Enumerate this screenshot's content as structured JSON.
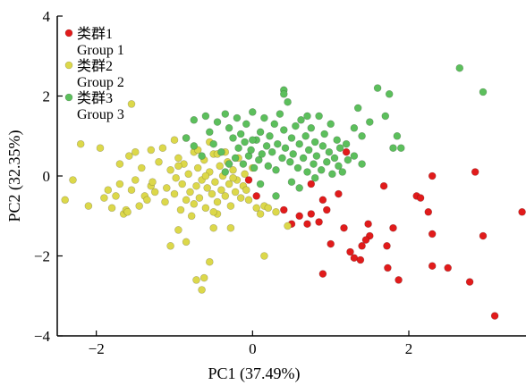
{
  "chart_data": {
    "type": "scatter",
    "xlabel": "PC1 (37.49%)",
    "ylabel": "PC2 (32.35%)",
    "xlim": [
      -2.5,
      3.5
    ],
    "ylim": [
      -4,
      4
    ],
    "xticks": [
      -2,
      0,
      2
    ],
    "yticks": [
      -4,
      -2,
      0,
      2,
      4
    ],
    "grid": false,
    "legend_position": "top-left",
    "series": [
      {
        "name": "类群1",
        "name_en": "Group 1",
        "color": "#e11b1b",
        "points": [
          [
            -0.05,
            -0.1
          ],
          [
            0.05,
            -0.5
          ],
          [
            0.4,
            -0.85
          ],
          [
            0.6,
            -1.0
          ],
          [
            0.7,
            -1.2
          ],
          [
            0.85,
            -1.15
          ],
          [
            0.75,
            -0.95
          ],
          [
            0.95,
            -0.85
          ],
          [
            1.1,
            -0.45
          ],
          [
            0.9,
            -0.6
          ],
          [
            1.2,
            0.6
          ],
          [
            0.75,
            -0.2
          ],
          [
            1.0,
            -1.7
          ],
          [
            0.9,
            -2.45
          ],
          [
            1.25,
            -1.9
          ],
          [
            1.4,
            -1.75
          ],
          [
            1.3,
            -2.05
          ],
          [
            1.38,
            -2.1
          ],
          [
            1.48,
            -1.2
          ],
          [
            1.5,
            -1.5
          ],
          [
            1.45,
            -1.6
          ],
          [
            1.72,
            -1.75
          ],
          [
            1.73,
            -2.3
          ],
          [
            1.68,
            -0.25
          ],
          [
            2.1,
            -0.5
          ],
          [
            2.15,
            -0.55
          ],
          [
            2.3,
            -1.45
          ],
          [
            2.3,
            -2.25
          ],
          [
            2.25,
            -0.9
          ],
          [
            2.5,
            -2.3
          ],
          [
            2.3,
            0.0
          ],
          [
            2.85,
            0.1
          ],
          [
            2.95,
            -1.5
          ],
          [
            2.78,
            -2.65
          ],
          [
            3.1,
            -3.5
          ],
          [
            3.45,
            -0.9
          ],
          [
            1.87,
            -2.6
          ],
          [
            1.17,
            -1.3
          ],
          [
            0.5,
            -1.2
          ],
          [
            1.8,
            -1.3
          ]
        ]
      },
      {
        "name": "类群2",
        "name_en": "Group 2",
        "color": "#dcd84a",
        "points": [
          [
            -2.4,
            -0.6
          ],
          [
            -2.3,
            -0.1
          ],
          [
            -2.2,
            0.8
          ],
          [
            -2.1,
            -0.75
          ],
          [
            -1.95,
            0.7
          ],
          [
            -1.9,
            -0.55
          ],
          [
            -1.85,
            -0.35
          ],
          [
            -1.8,
            -0.8
          ],
          [
            -1.75,
            -0.5
          ],
          [
            -1.7,
            -0.2
          ],
          [
            -1.65,
            -0.95
          ],
          [
            -1.62,
            -0.85
          ],
          [
            -1.6,
            -0.9
          ],
          [
            -1.58,
            0.5
          ],
          [
            -1.55,
            -0.35
          ],
          [
            -1.5,
            0.6
          ],
          [
            -1.5,
            -0.1
          ],
          [
            -1.45,
            -0.75
          ],
          [
            -1.42,
            0.2
          ],
          [
            -1.38,
            -0.5
          ],
          [
            -1.35,
            -0.6
          ],
          [
            -1.3,
            -0.25
          ],
          [
            -1.28,
            -0.15
          ],
          [
            -1.25,
            -0.4
          ],
          [
            -1.2,
            0.35
          ],
          [
            -1.15,
            0.7
          ],
          [
            -1.12,
            -0.65
          ],
          [
            -1.1,
            -0.3
          ],
          [
            -1.05,
            0.15
          ],
          [
            -1.0,
            -0.45
          ],
          [
            -0.98,
            -0.05
          ],
          [
            -0.95,
            0.45
          ],
          [
            -0.92,
            -0.85
          ],
          [
            -0.9,
            -0.2
          ],
          [
            -0.88,
            0.3
          ],
          [
            -0.85,
            -0.6
          ],
          [
            -0.82,
            0.05
          ],
          [
            -0.8,
            -0.4
          ],
          [
            -0.78,
            -1.0
          ],
          [
            -0.75,
            0.6
          ],
          [
            -0.72,
            -0.25
          ],
          [
            -0.7,
            0.2
          ],
          [
            -0.68,
            -0.55
          ],
          [
            -0.65,
            -0.1
          ],
          [
            -0.62,
            0.4
          ],
          [
            -0.6,
            -0.8
          ],
          [
            -0.58,
            -0.3
          ],
          [
            -0.55,
            0.1
          ],
          [
            -0.52,
            -0.45
          ],
          [
            -0.5,
            0.55
          ],
          [
            -0.48,
            -0.15
          ],
          [
            -0.45,
            -0.65
          ],
          [
            -0.42,
            0.25
          ],
          [
            -0.4,
            -0.35
          ],
          [
            -0.38,
            0.0
          ],
          [
            -0.35,
            -0.5
          ],
          [
            -0.32,
            0.35
          ],
          [
            -0.3,
            -0.2
          ],
          [
            -0.28,
            -0.75
          ],
          [
            -0.25,
            0.15
          ],
          [
            -0.22,
            -0.4
          ],
          [
            -0.2,
            -0.1
          ],
          [
            -0.18,
            0.45
          ],
          [
            -0.15,
            -0.55
          ],
          [
            -0.12,
            -0.25
          ],
          [
            -0.1,
            0.05
          ],
          [
            -0.08,
            -0.35
          ],
          [
            -0.05,
            -0.6
          ],
          [
            0.0,
            0.2
          ],
          [
            0.05,
            -0.8
          ],
          [
            0.1,
            -0.95
          ],
          [
            0.15,
            -0.75
          ],
          [
            0.2,
            -0.8
          ],
          [
            0.3,
            -0.9
          ],
          [
            -1.05,
            -1.75
          ],
          [
            -0.95,
            -1.35
          ],
          [
            -0.85,
            -1.65
          ],
          [
            -0.72,
            -2.6
          ],
          [
            -0.62,
            -2.55
          ],
          [
            -0.55,
            -2.15
          ],
          [
            -0.65,
            -2.85
          ],
          [
            -0.5,
            -1.3
          ],
          [
            -0.28,
            -1.3
          ],
          [
            -0.45,
            -0.95
          ],
          [
            0.15,
            -2.0
          ],
          [
            0.45,
            -1.25
          ],
          [
            -0.85,
            0.95
          ],
          [
            -0.7,
            0.65
          ],
          [
            -0.55,
            0.85
          ],
          [
            -0.45,
            0.55
          ],
          [
            -1.0,
            0.9
          ],
          [
            -1.3,
            0.65
          ],
          [
            -1.55,
            1.8
          ],
          [
            -0.5,
            -0.9
          ],
          [
            -0.25,
            -0.05
          ],
          [
            -1.7,
            0.3
          ],
          [
            -0.95,
            0.25
          ],
          [
            -0.75,
            -0.7
          ],
          [
            -0.6,
            0.0
          ],
          [
            -0.35,
            0.6
          ]
        ]
      },
      {
        "name": "类群3",
        "name_en": "Group 3",
        "color": "#5cbf5c",
        "points": [
          [
            -0.75,
            1.4
          ],
          [
            -0.6,
            1.5
          ],
          [
            -0.55,
            1.1
          ],
          [
            -0.5,
            0.8
          ],
          [
            -0.45,
            1.35
          ],
          [
            -0.4,
            0.6
          ],
          [
            -0.35,
            1.55
          ],
          [
            -0.3,
            1.2
          ],
          [
            -0.25,
            0.95
          ],
          [
            -0.22,
            0.45
          ],
          [
            -0.2,
            1.45
          ],
          [
            -0.18,
            0.7
          ],
          [
            -0.15,
            1.05
          ],
          [
            -0.12,
            0.3
          ],
          [
            -0.1,
            0.85
          ],
          [
            -0.08,
            1.3
          ],
          [
            -0.05,
            0.5
          ],
          [
            -0.02,
            0.65
          ],
          [
            0.0,
            1.6
          ],
          [
            0.02,
            0.2
          ],
          [
            0.05,
            0.9
          ],
          [
            0.08,
            0.4
          ],
          [
            0.1,
            1.1
          ],
          [
            0.12,
            0.55
          ],
          [
            0.15,
            1.45
          ],
          [
            0.18,
            0.75
          ],
          [
            0.2,
            0.25
          ],
          [
            0.22,
            1.0
          ],
          [
            0.25,
            0.6
          ],
          [
            0.28,
            1.3
          ],
          [
            0.3,
            0.15
          ],
          [
            0.32,
            0.8
          ],
          [
            0.35,
            1.55
          ],
          [
            0.38,
            0.45
          ],
          [
            0.4,
            1.15
          ],
          [
            0.42,
            0.7
          ],
          [
            0.45,
            1.85
          ],
          [
            0.48,
            0.35
          ],
          [
            0.5,
            0.95
          ],
          [
            0.52,
            0.55
          ],
          [
            0.55,
            1.25
          ],
          [
            0.58,
            0.2
          ],
          [
            0.6,
            0.8
          ],
          [
            0.62,
            1.4
          ],
          [
            0.65,
            0.45
          ],
          [
            0.68,
            1.0
          ],
          [
            0.7,
            0.1
          ],
          [
            0.72,
            0.65
          ],
          [
            0.75,
            1.2
          ],
          [
            0.78,
            0.3
          ],
          [
            0.8,
            0.85
          ],
          [
            0.82,
            0.5
          ],
          [
            0.85,
            1.5
          ],
          [
            0.88,
            0.15
          ],
          [
            0.9,
            0.75
          ],
          [
            0.92,
            1.05
          ],
          [
            0.95,
            0.35
          ],
          [
            0.98,
            0.6
          ],
          [
            1.0,
            1.3
          ],
          [
            1.02,
            0.05
          ],
          [
            1.05,
            0.45
          ],
          [
            1.08,
            0.9
          ],
          [
            1.1,
            0.25
          ],
          [
            1.12,
            0.7
          ],
          [
            1.15,
            0.1
          ],
          [
            1.2,
            0.8
          ],
          [
            1.22,
            0.4
          ],
          [
            1.3,
            1.2
          ],
          [
            1.35,
            1.7
          ],
          [
            1.4,
            1.0
          ],
          [
            1.5,
            1.35
          ],
          [
            1.6,
            2.2
          ],
          [
            1.7,
            1.5
          ],
          [
            1.75,
            2.05
          ],
          [
            1.8,
            0.7
          ],
          [
            1.85,
            1.0
          ],
          [
            1.9,
            0.7
          ],
          [
            2.65,
            2.7
          ],
          [
            2.95,
            2.1
          ],
          [
            0.4,
            2.15
          ],
          [
            0.4,
            2.05
          ],
          [
            -0.85,
            0.95
          ],
          [
            -0.75,
            0.75
          ],
          [
            -0.65,
            0.5
          ],
          [
            -0.3,
            0.3
          ],
          [
            0.1,
            -0.2
          ],
          [
            0.3,
            -0.5
          ],
          [
            0.5,
            -0.15
          ],
          [
            0.6,
            -0.3
          ],
          [
            0.8,
            -0.05
          ],
          [
            1.3,
            0.5
          ],
          [
            1.4,
            0.3
          ],
          [
            0.0,
            0.9
          ],
          [
            -0.35,
            0.1
          ],
          [
            0.7,
            1.5
          ]
        ]
      }
    ]
  }
}
